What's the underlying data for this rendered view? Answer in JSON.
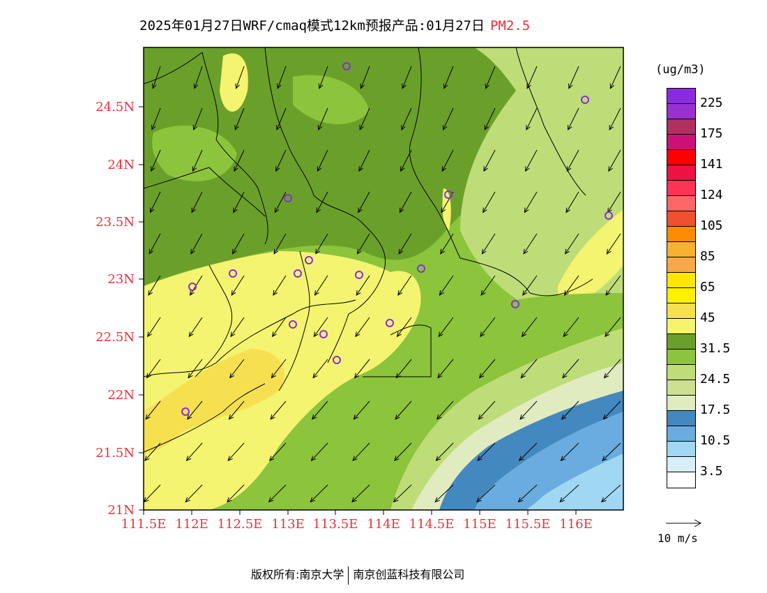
{
  "title": {
    "main": "2025年01月27日WRF/cmaq模式12km预报产品:01月27日",
    "pollutant": "PM2.5",
    "pollutant_color": "#e8303a"
  },
  "axes": {
    "lat_ticks": [
      "24.5N",
      "24N",
      "23.5N",
      "23N",
      "22.5N",
      "22N",
      "21.5N",
      "21N"
    ],
    "lon_ticks": [
      "111.5E",
      "112E",
      "112.5E",
      "113E",
      "113.5E",
      "114E",
      "114.5E",
      "115E",
      "115.5E",
      "116E"
    ],
    "label_color": "#e8303a"
  },
  "legend": {
    "unit": "(ug/m3)",
    "colors": [
      "#8a2be2",
      "#9b30d0",
      "#b03060",
      "#cc1077",
      "#ff0000",
      "#ee1144",
      "#ff3355",
      "#ff6666",
      "#f05030",
      "#ff8c00",
      "#f8b030",
      "#f8a848",
      "#ffe600",
      "#ffef00",
      "#f6e050",
      "#f4f470",
      "#6aa02a",
      "#8cc43c",
      "#bedd78",
      "#cce092",
      "#e0ecc0",
      "#4488c0",
      "#6aace0",
      "#a0d8f4",
      "#d8eef8",
      "#ffffff"
    ],
    "labels": [
      "225",
      "175",
      "141",
      "124",
      "105",
      "85",
      "65",
      "45",
      "31.5",
      "24.5",
      "17.5",
      "10.5",
      "3.5"
    ]
  },
  "wind_reference": "10 m/s",
  "copyright": {
    "left": "版权所有:南京大学",
    "right": "南京创蓝科技有限公司"
  },
  "palette": {
    "green_dark": "#6aa02a",
    "green_mid": "#8cc43c",
    "green_light": "#bedd78",
    "green_pale": "#e0ecc0",
    "yellow": "#f4f470",
    "yellow_deep": "#f6e050",
    "blue_dark": "#4488c0",
    "blue_mid": "#6aace0",
    "blue_light": "#a0d8f4"
  }
}
